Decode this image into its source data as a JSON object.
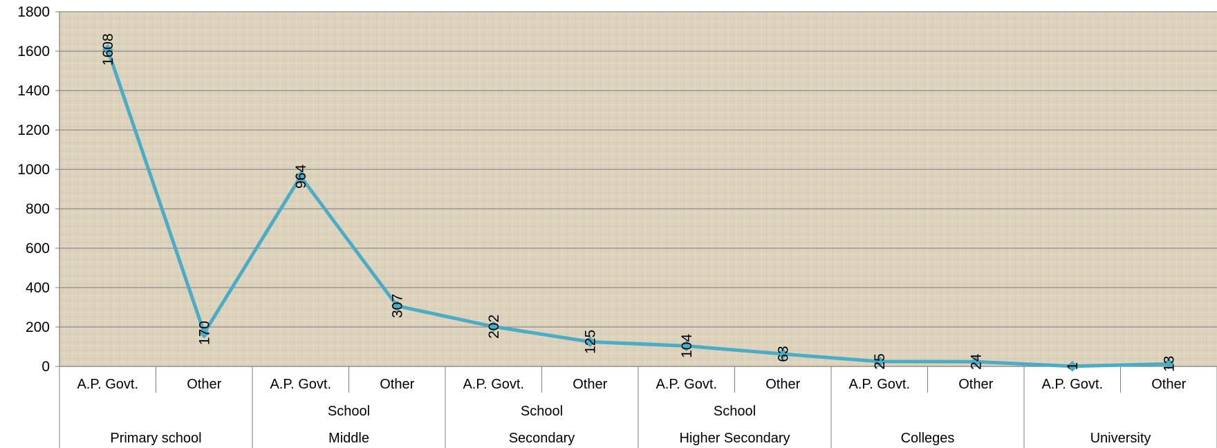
{
  "chart_data": {
    "type": "line",
    "title": "",
    "xlabel": "",
    "ylabel": "",
    "ylim": [
      0,
      1800
    ],
    "y_ticks": [
      0,
      200,
      400,
      600,
      800,
      1000,
      1200,
      1400,
      1600,
      1800
    ],
    "grid": true,
    "legend": "none",
    "categories": [
      {
        "label": "A.P. Govt.",
        "level": "Primary school"
      },
      {
        "label": "Other",
        "level": "Primary school"
      },
      {
        "label": "A.P. Govt.",
        "level": "Middle School"
      },
      {
        "label": "Other",
        "level": "Middle School"
      },
      {
        "label": "A.P. Govt.",
        "level": "Secondary School"
      },
      {
        "label": "Other",
        "level": "Secondary School"
      },
      {
        "label": "A.P. Govt.",
        "level": "Higher Secondary School"
      },
      {
        "label": "Other",
        "level": "Higher Secondary School"
      },
      {
        "label": "A.P. Govt.",
        "level": "Colleges"
      },
      {
        "label": "Other",
        "level": "Colleges"
      },
      {
        "label": "A.P. Govt.",
        "level": "University"
      },
      {
        "label": "Other",
        "level": "University"
      }
    ],
    "groups": [
      {
        "line1": "",
        "line2": "Primary school"
      },
      {
        "line1": "School",
        "line2": "Middle"
      },
      {
        "line1": "School",
        "line2": "Secondary"
      },
      {
        "line1": "School",
        "line2": "Higher Secondary"
      },
      {
        "line1": "",
        "line2": "Colleges"
      },
      {
        "line1": "",
        "line2": "University"
      }
    ],
    "series": [
      {
        "values": [
          1608,
          170,
          964,
          307,
          202,
          125,
          104,
          63,
          25,
          24,
          1,
          13
        ]
      }
    ],
    "colors": {
      "line": "#4bacc6",
      "plot_bg": "#ddd3bd",
      "grid": "#8c8c8c",
      "axis": "#7f7f7f"
    }
  }
}
